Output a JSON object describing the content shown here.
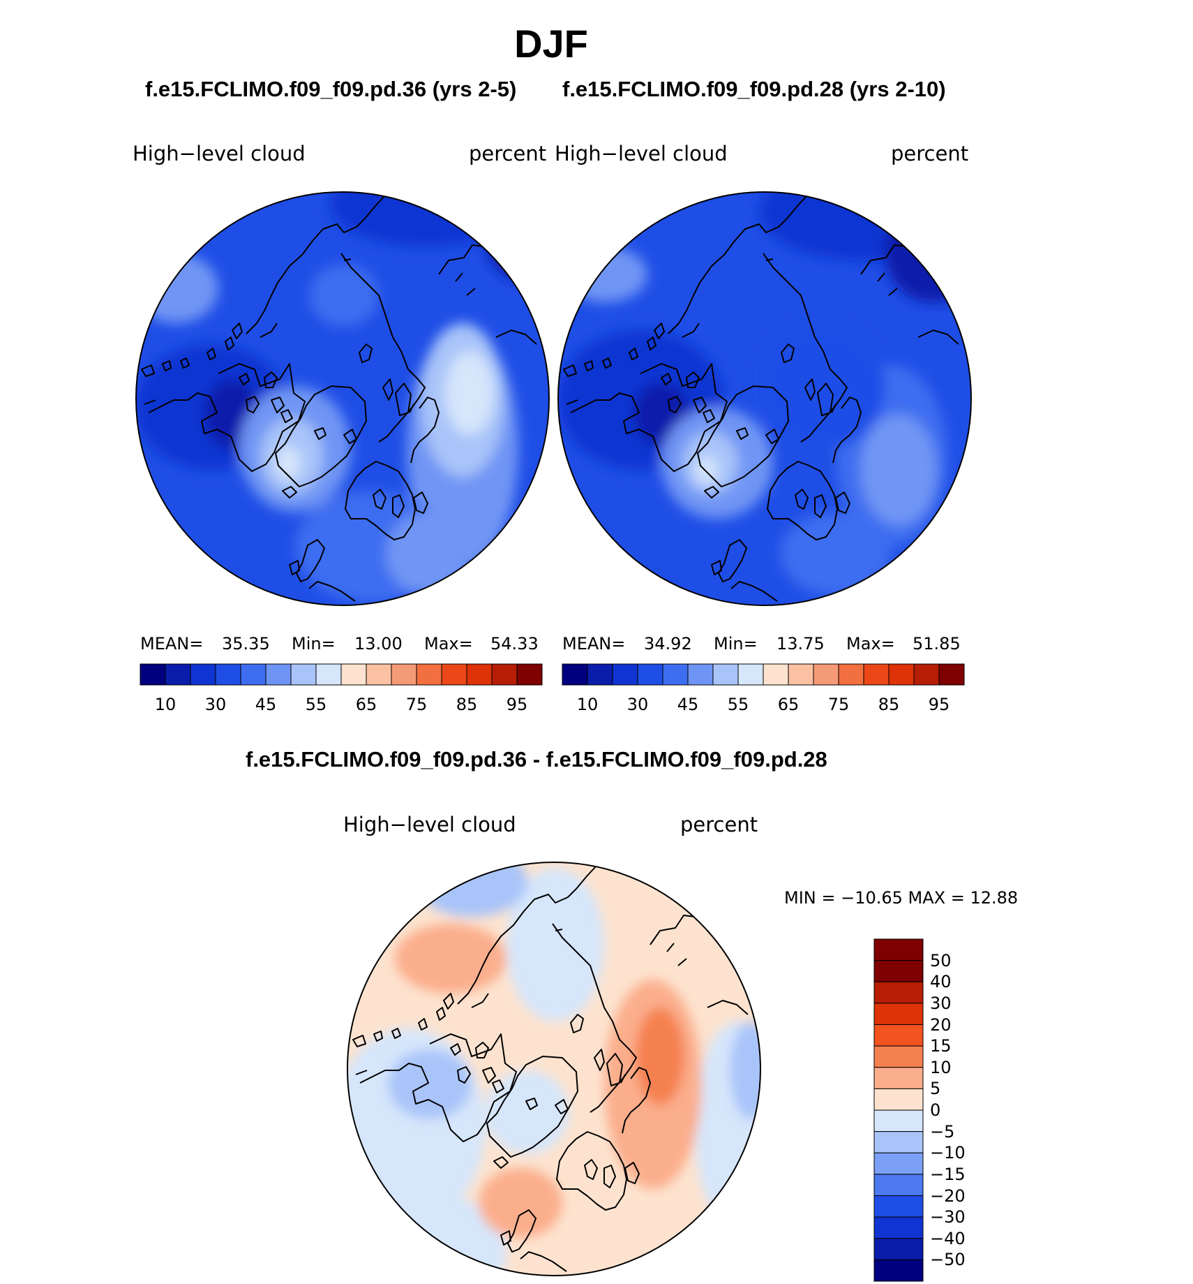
{
  "title": "DJF",
  "panel_left": {
    "case_title": "f.e15.FCLIMO.f09_f09.pd.36 (yrs 2-5)",
    "variable": "High−level  cloud",
    "units": "percent",
    "mean_label": "MEAN=",
    "mean_value": "35.35",
    "min_label": "Min=",
    "min_value": "13.00",
    "max_label": "Max=",
    "max_value": "54.33",
    "colorbar_ticks": [
      "10",
      "30",
      "45",
      "55",
      "65",
      "75",
      "85",
      "95"
    ]
  },
  "panel_right": {
    "case_title": "f.e15.FCLIMO.f09_f09.pd.28 (yrs 2-10)",
    "variable": "High−level  cloud",
    "units": "percent",
    "mean_label": "MEAN=",
    "mean_value": "34.92",
    "min_label": "Min=",
    "min_value": "13.75",
    "max_label": "Max=",
    "max_value": "51.85",
    "colorbar_ticks": [
      "10",
      "30",
      "45",
      "55",
      "65",
      "75",
      "85",
      "95"
    ]
  },
  "panel_diff": {
    "case_title": "f.e15.FCLIMO.f09_f09.pd.36 - f.e15.FCLIMO.f09_f09.pd.28",
    "variable": "High−level  cloud",
    "units": "percent",
    "minmax_text": "MIN  =  −10.65  MAX  =    12.88",
    "colorbar_ticks": [
      "50",
      "40",
      "30",
      "20",
      "15",
      "10",
      "5",
      "0",
      "−5",
      "−10",
      "−15",
      "−20",
      "−30",
      "−40",
      "−50"
    ]
  },
  "colors": {
    "abs_scale": [
      "#00007f",
      "#0a1caa",
      "#0f34d2",
      "#1f4ee6",
      "#3d6df0",
      "#6f95f4",
      "#a9c4f9",
      "#d6e6fb",
      "#fde3cf",
      "#fbc1a3",
      "#f59a77",
      "#f2703f",
      "#ec4718",
      "#de3208",
      "#b51d05",
      "#7e0000"
    ],
    "diff_scale": [
      "#7e0000",
      "#b51d05",
      "#de3208",
      "#f2531f",
      "#f5804f",
      "#fbae8c",
      "#fde3cf",
      "#d6e6fb",
      "#a9c4f9",
      "#7ba0f5",
      "#4c78f0",
      "#1f4ee6",
      "#0f34d2",
      "#0a1caa",
      "#00007f"
    ],
    "abs_base": "#1f4ee6",
    "diff_base": "#fde3cf",
    "coast": "#000000"
  }
}
